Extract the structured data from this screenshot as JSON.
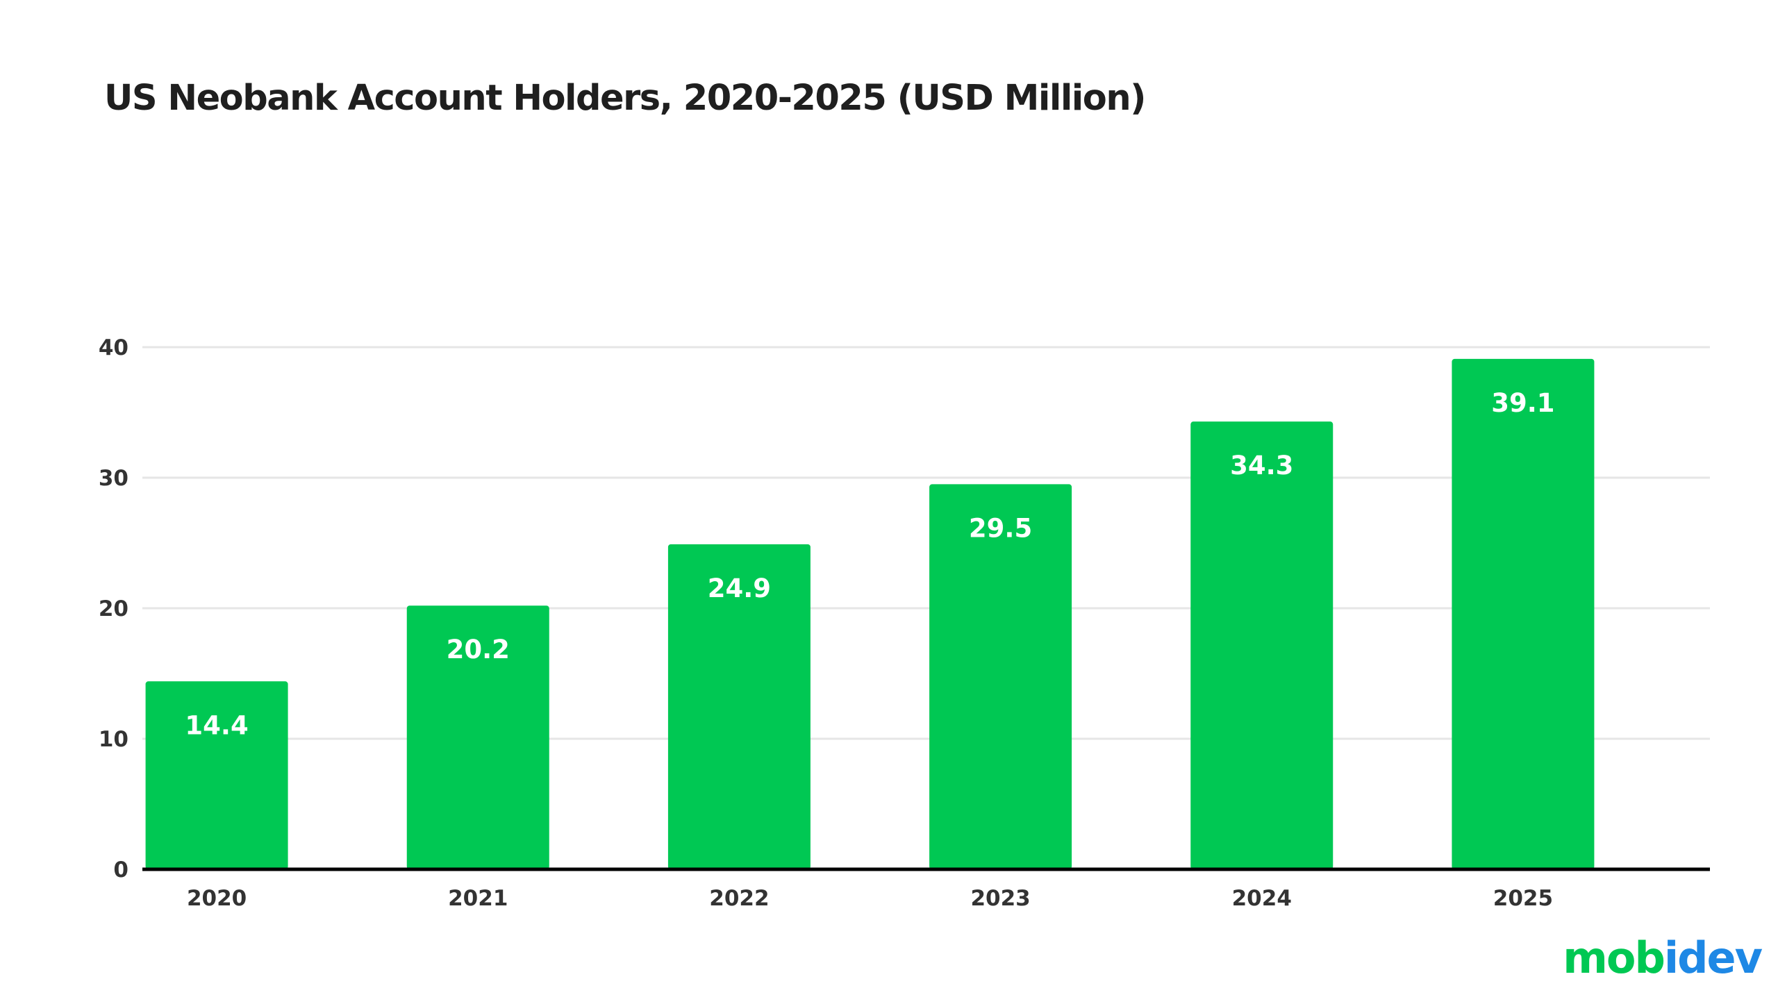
{
  "colors": {
    "bar": "#00c853",
    "grid": "#e6e6e6",
    "axis": "#000000",
    "text": "#1f1f1f",
    "logo_primary": "#00c853",
    "logo_secondary": "#1e88e5"
  },
  "chart_data": {
    "type": "bar",
    "title": "US Neobank Account Holders, 2020-2025 (USD Million)",
    "xlabel": "",
    "ylabel": "",
    "categories": [
      "2020",
      "2021",
      "2022",
      "2023",
      "2024",
      "2025"
    ],
    "values": [
      14.4,
      20.2,
      24.9,
      29.5,
      34.3,
      39.1
    ],
    "value_labels": [
      "14.4",
      "20.2",
      "24.9",
      "29.5",
      "34.3",
      "39.1"
    ],
    "ylim": [
      0,
      40
    ],
    "yticks": [
      0,
      10,
      20,
      30,
      40
    ],
    "grid": true,
    "legend": "none"
  },
  "brand": {
    "logo_text": "mobidev"
  }
}
